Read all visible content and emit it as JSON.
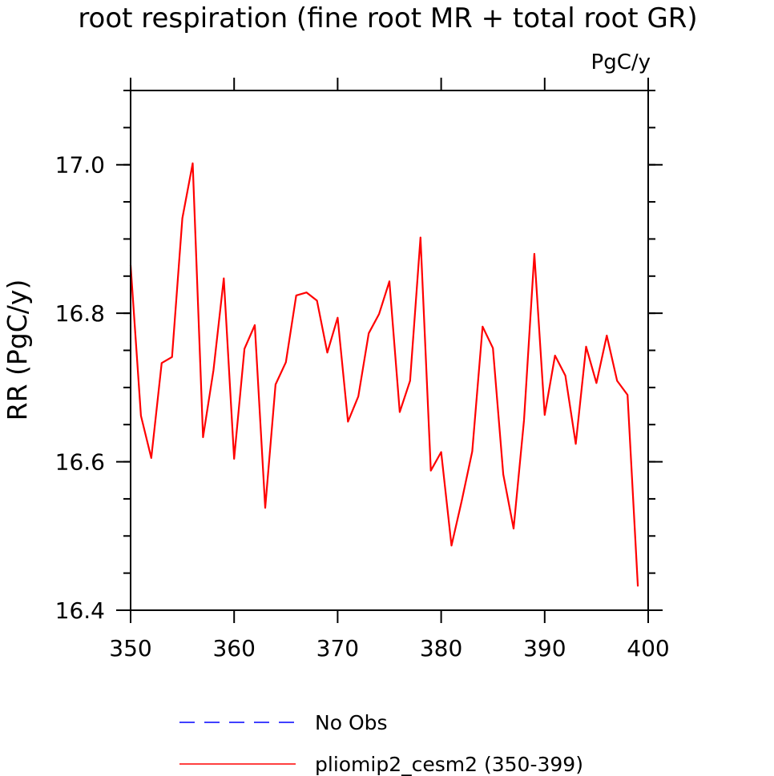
{
  "chart_data": {
    "type": "line",
    "title": "root respiration (fine root MR + total root GR)",
    "units": "PgC/y",
    "ylabel": "RR  (PgC/y)",
    "xlabel": "",
    "xlim": [
      350,
      400
    ],
    "ylim": [
      16.4,
      17.1
    ],
    "x_ticks": [
      350,
      360,
      370,
      380,
      390,
      400
    ],
    "y_ticks": [
      16.4,
      16.6,
      16.8,
      17.0
    ],
    "y_tick_labels": [
      "16.4",
      "16.6",
      "16.8",
      "17.0"
    ],
    "grid": false,
    "legend_position": "bottom",
    "series": [
      {
        "name": "No Obs",
        "color": "#0000ff",
        "dash": "dashed",
        "x": [],
        "values": []
      },
      {
        "name": "pliomip2_cesm2 (350-399)",
        "color": "#ff0000",
        "dash": "solid",
        "x": [
          350,
          351,
          352,
          353,
          354,
          355,
          356,
          357,
          358,
          359,
          360,
          361,
          362,
          363,
          364,
          365,
          366,
          367,
          368,
          369,
          370,
          371,
          372,
          373,
          374,
          375,
          376,
          377,
          378,
          379,
          380,
          381,
          382,
          383,
          384,
          385,
          386,
          387,
          388,
          389,
          390,
          391,
          392,
          393,
          394,
          395,
          396,
          397,
          398,
          399
        ],
        "values": [
          16.865,
          16.662,
          16.605,
          16.733,
          16.741,
          16.928,
          17.002,
          16.633,
          16.723,
          16.847,
          16.604,
          16.752,
          16.784,
          16.538,
          16.704,
          16.734,
          16.824,
          16.828,
          16.817,
          16.747,
          16.794,
          16.654,
          16.688,
          16.773,
          16.799,
          16.843,
          16.667,
          16.709,
          16.902,
          16.588,
          16.613,
          16.487,
          16.548,
          16.614,
          16.782,
          16.753,
          16.583,
          16.51,
          16.656,
          16.88,
          16.663,
          16.743,
          16.716,
          16.624,
          16.755,
          16.706,
          16.77,
          16.709,
          16.69,
          16.432
        ]
      }
    ]
  }
}
